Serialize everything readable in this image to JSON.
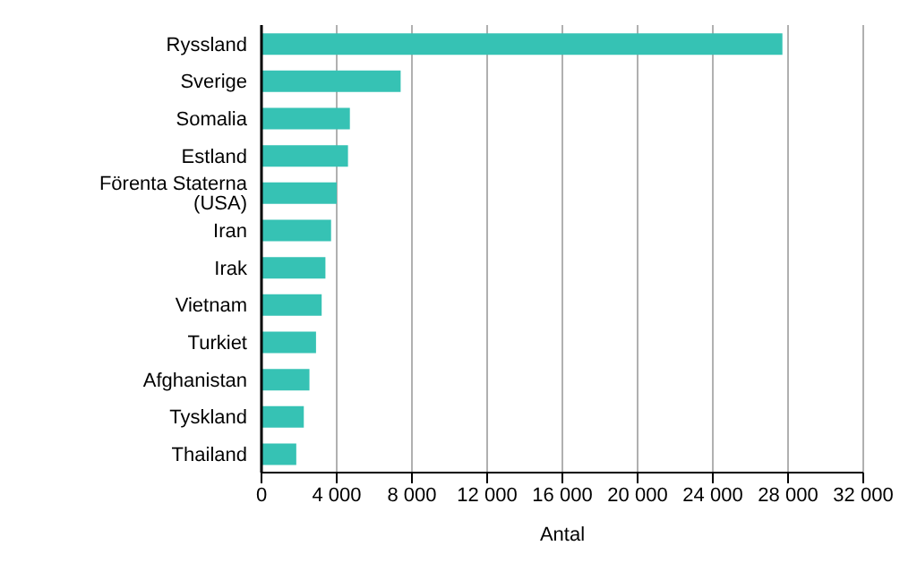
{
  "chart_data": {
    "type": "bar",
    "orientation": "horizontal",
    "xlabel": "Antal",
    "categories": [
      "Ryssland",
      "Sverige",
      "Somalia",
      "Estland",
      "Förenta Staterna (USA)",
      "Iran",
      "Irak",
      "Vietnam",
      "Turkiet",
      "Afghanistan",
      "Tyskland",
      "Thailand"
    ],
    "values": [
      27700,
      7400,
      4700,
      4600,
      4000,
      3700,
      3400,
      3200,
      2900,
      2550,
      2250,
      1850
    ],
    "color": "#36c2b4",
    "xlim": [
      0,
      32000
    ],
    "xticks": [
      {
        "value": 0,
        "label": "0"
      },
      {
        "value": 4000,
        "label": "4 000"
      },
      {
        "value": 8000,
        "label": "8 000"
      },
      {
        "value": 12000,
        "label": "12 000"
      },
      {
        "value": 16000,
        "label": "16 000"
      },
      {
        "value": 20000,
        "label": "20 000"
      },
      {
        "value": 24000,
        "label": "24 000"
      },
      {
        "value": 28000,
        "label": "28 000"
      },
      {
        "value": 32000,
        "label": "32 000"
      }
    ],
    "grid": "x",
    "legend": false
  }
}
